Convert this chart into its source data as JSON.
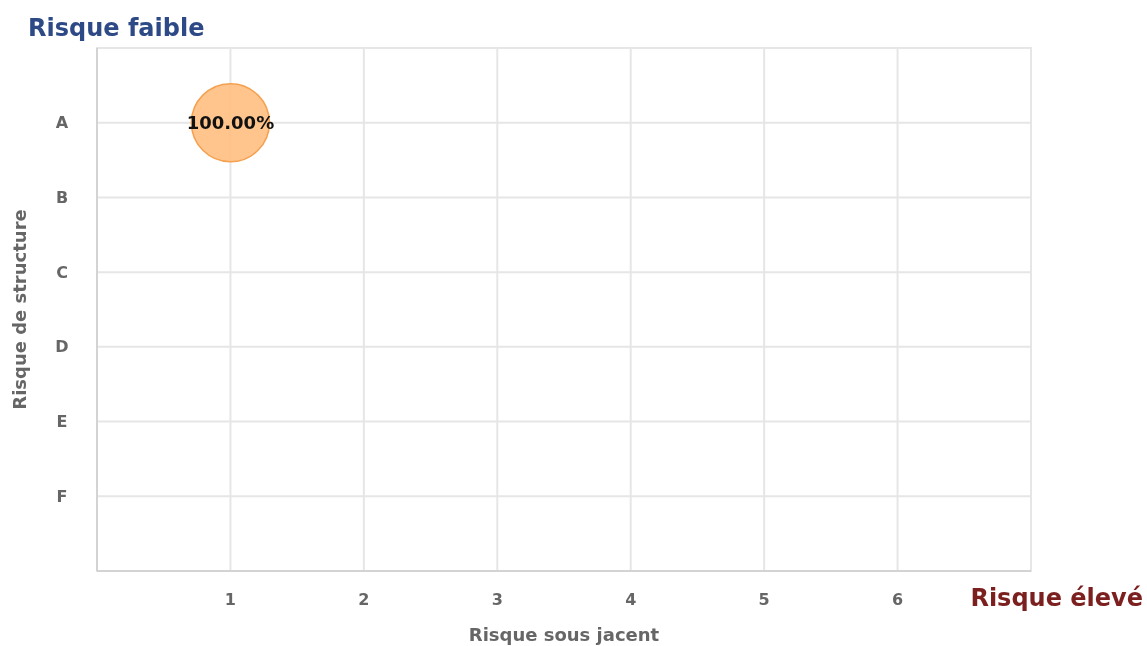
{
  "chart_data": {
    "type": "bubble",
    "orientation": "horizontal",
    "xlabel": "Risque sous jacent",
    "ylabel": "Risque de structure",
    "annotations": [
      "Risque faible",
      "Risque élevé"
    ],
    "categories": [
      "A",
      "B",
      "C",
      "D",
      "E",
      "F"
    ],
    "series": [
      {
        "color": "#ffbb78",
        "values": [
          1,
          null,
          null,
          null,
          null,
          null
        ],
        "sizes": [
          1,
          null,
          null,
          null,
          null,
          null
        ],
        "value_labels": [
          "100.00%",
          null,
          null,
          null,
          null,
          null
        ]
      }
    ],
    "xlim": [
      0,
      7
    ],
    "xticks": [
      1,
      2,
      3,
      4,
      5,
      6
    ],
    "grid": true
  }
}
